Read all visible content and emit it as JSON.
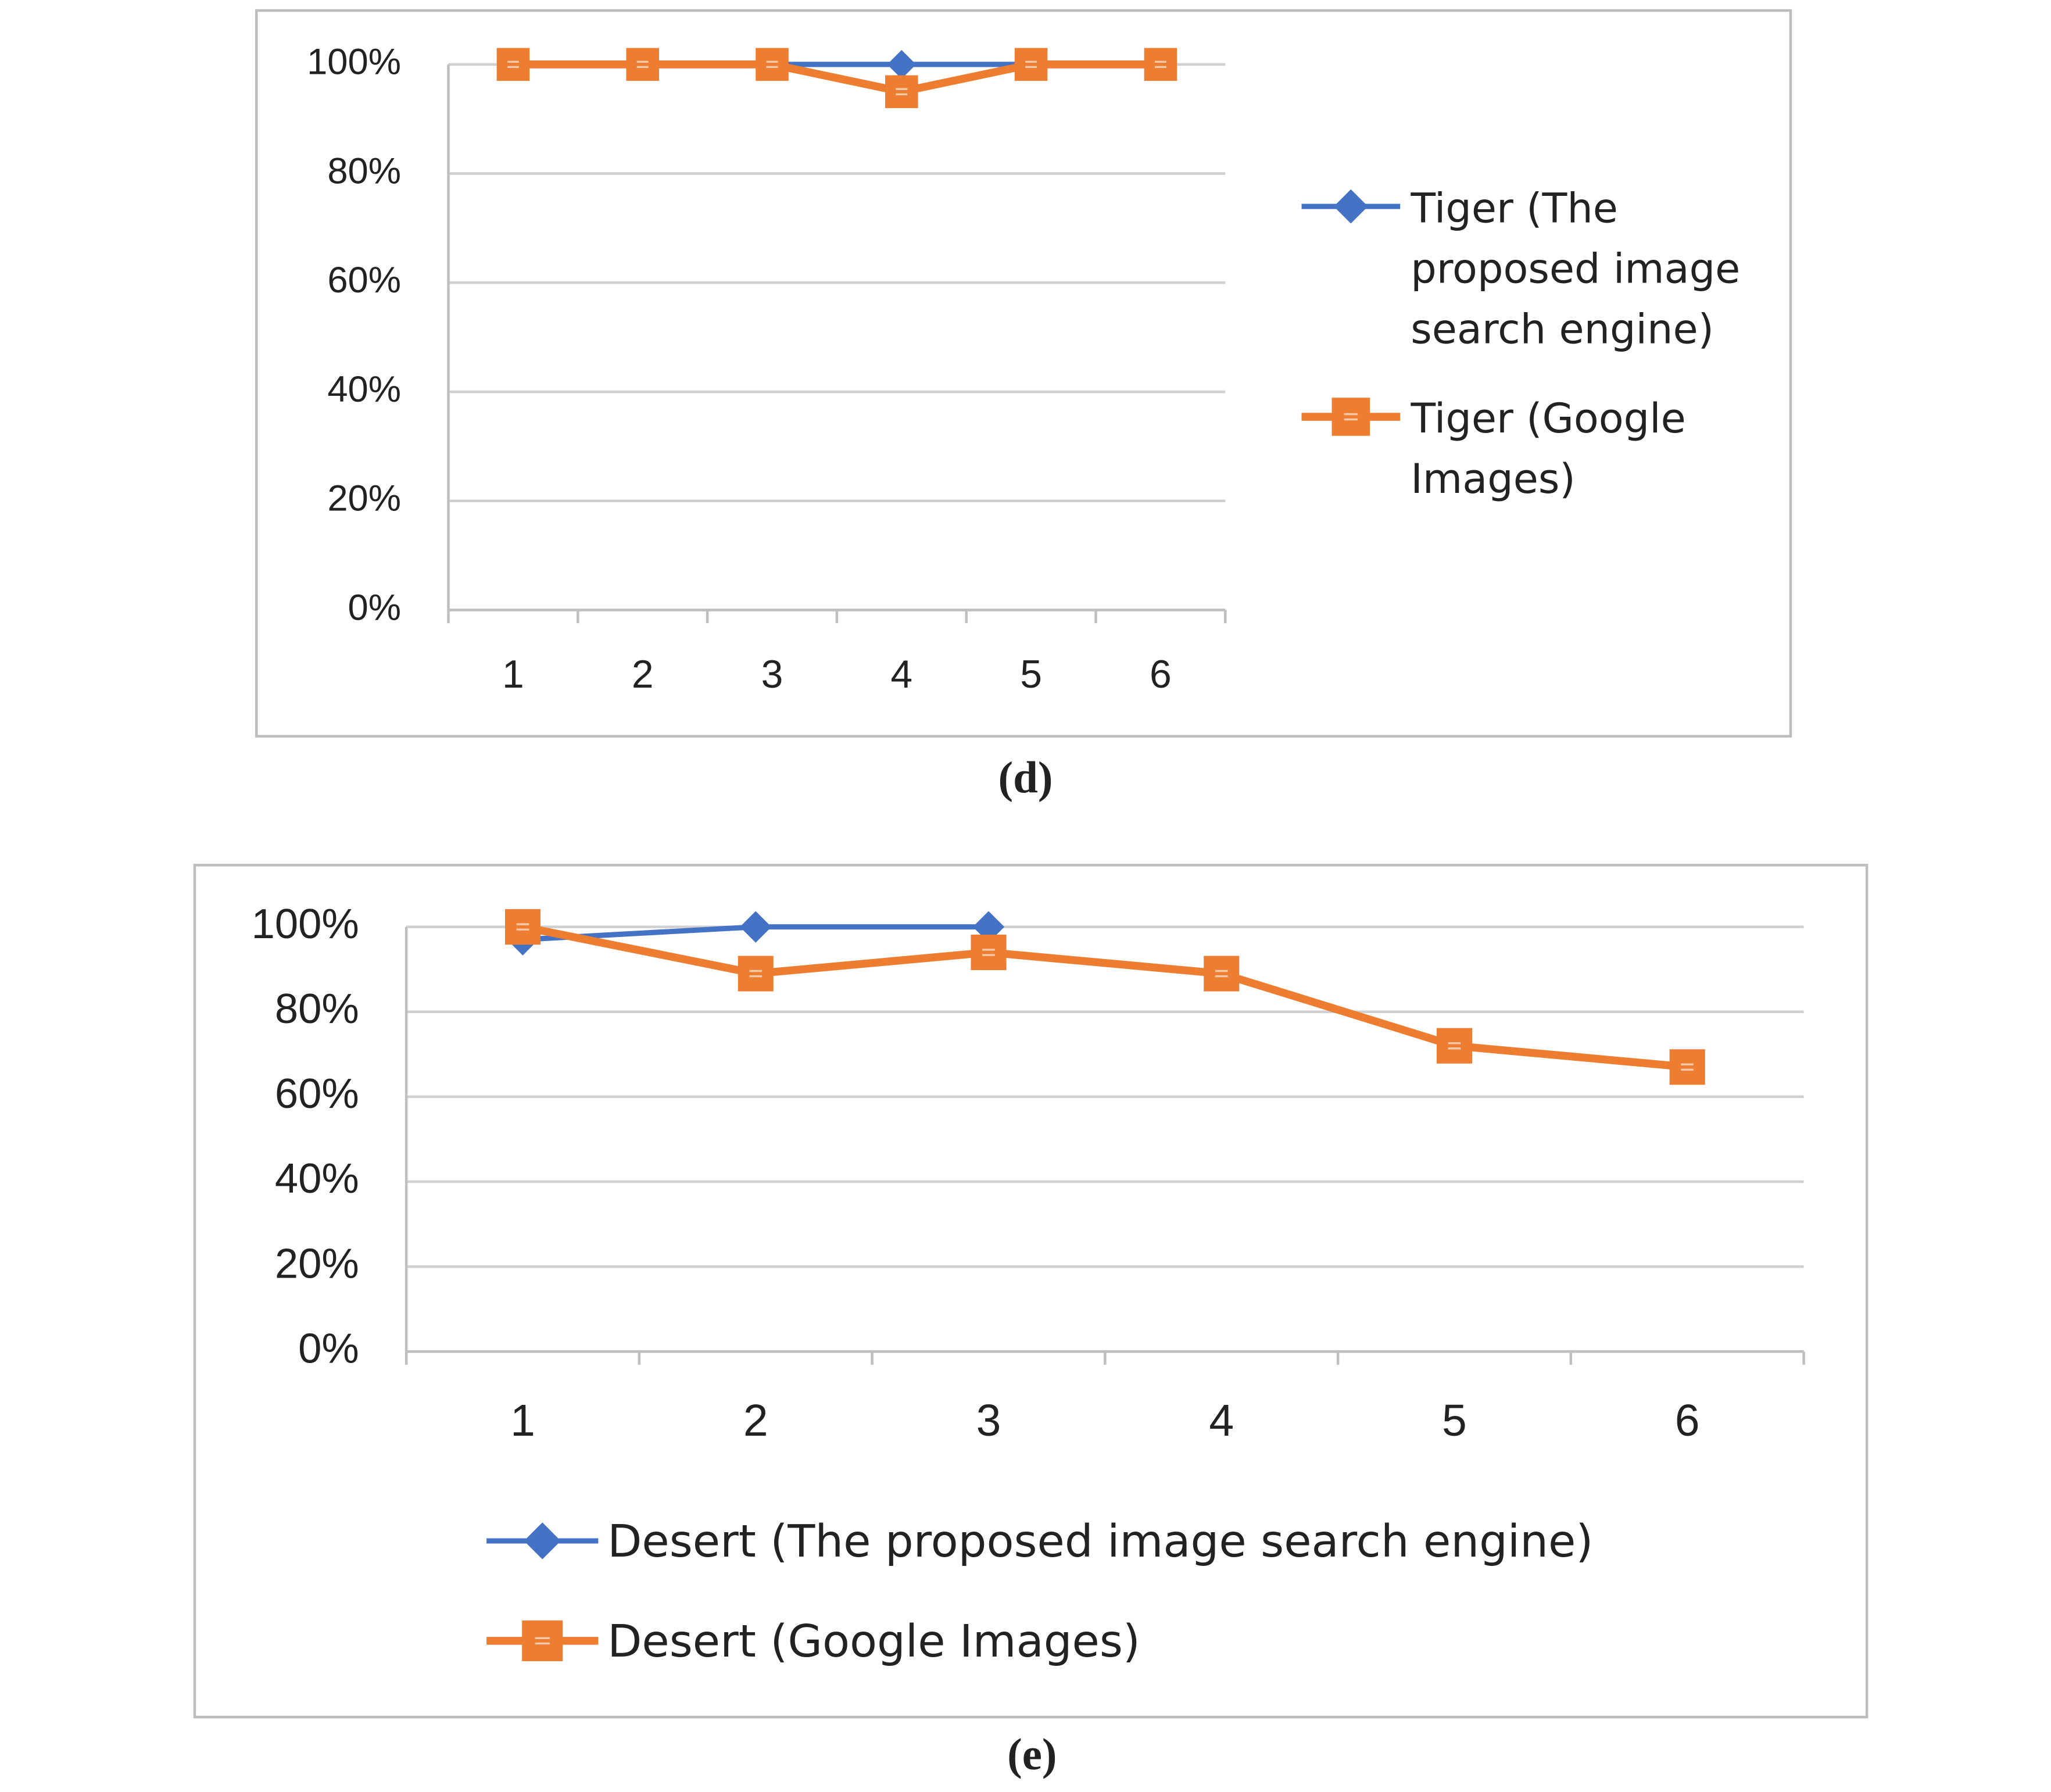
{
  "chart_data": [
    {
      "type": "line",
      "caption": "(d)",
      "categories": [
        "1",
        "2",
        "3",
        "4",
        "5",
        "6"
      ],
      "series": [
        {
          "name": "Tiger (The proposed image search engine)",
          "color": "#4472c4",
          "marker": "diamond",
          "values": [
            100,
            100,
            100,
            100,
            100,
            100
          ]
        },
        {
          "name": "Tiger (Google Images)",
          "color": "#ed7d31",
          "marker": "square",
          "values": [
            100,
            100,
            100,
            95,
            100,
            100
          ]
        }
      ],
      "ylim": [
        0,
        100
      ],
      "yticks": [
        {
          "value": 0,
          "label": "0%"
        },
        {
          "value": 20,
          "label": "20%"
        },
        {
          "value": 40,
          "label": "40%"
        },
        {
          "value": 60,
          "label": "60%"
        },
        {
          "value": 80,
          "label": "80%"
        },
        {
          "value": 100,
          "label": "100%"
        }
      ],
      "grid": true,
      "legend": "right"
    },
    {
      "type": "line",
      "caption": "(e)",
      "categories": [
        "1",
        "2",
        "3",
        "4",
        "5",
        "6"
      ],
      "series": [
        {
          "name": "Desert (The proposed image search engine)",
          "color": "#4472c4",
          "marker": "diamond",
          "values": [
            97,
            100,
            100,
            null,
            null,
            null
          ]
        },
        {
          "name": "Desert (Google Images)",
          "color": "#ed7d31",
          "marker": "square",
          "values": [
            100,
            89,
            94,
            89,
            72,
            67
          ]
        }
      ],
      "ylim": [
        0,
        100
      ],
      "yticks": [
        {
          "value": 0,
          "label": "0%"
        },
        {
          "value": 20,
          "label": "20%"
        },
        {
          "value": 40,
          "label": "40%"
        },
        {
          "value": 60,
          "label": "60%"
        },
        {
          "value": 80,
          "label": "80%"
        },
        {
          "value": 100,
          "label": "100%"
        }
      ],
      "grid": true,
      "legend": "bottom"
    }
  ]
}
